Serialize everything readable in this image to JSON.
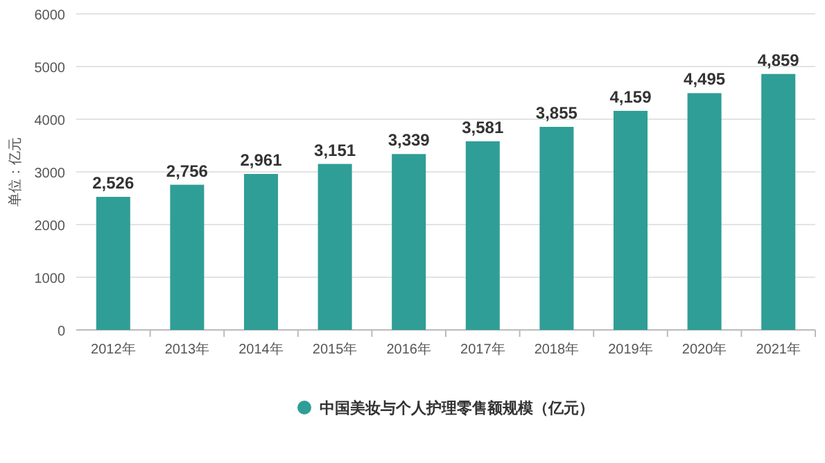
{
  "chart_data": {
    "type": "bar",
    "categories": [
      "2012年",
      "2013年",
      "2014年",
      "2015年",
      "2016年",
      "2017年",
      "2018年",
      "2019年",
      "2020年",
      "2021年"
    ],
    "series": [
      {
        "name": "中国美妆与个人护理零售额规模（亿元）",
        "color": "#2f9e96",
        "values": [
          2526,
          2756,
          2961,
          3151,
          3339,
          3581,
          3855,
          4159,
          4495,
          4859
        ],
        "value_labels": [
          "2,526",
          "2,756",
          "2,961",
          "3,151",
          "3,339",
          "3,581",
          "3,855",
          "4,159",
          "4,495",
          "4,859"
        ]
      }
    ],
    "ylabel": "单位：亿元",
    "ylim": [
      0,
      6000
    ],
    "yticks": [
      0,
      1000,
      2000,
      3000,
      4000,
      5000,
      6000
    ],
    "grid": "y",
    "legend": "bottom"
  }
}
